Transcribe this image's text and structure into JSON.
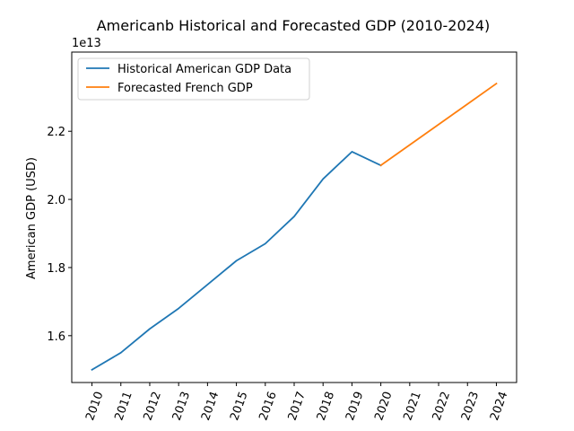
{
  "chart_data": {
    "type": "line",
    "title": "Americanb Historical and Forecasted GDP (2010-2024)",
    "xlabel": "",
    "ylabel": "American GDP (USD)",
    "y_offset_label": "1e13",
    "x_ticks": [
      "2010",
      "2011",
      "2012",
      "2013",
      "2014",
      "2015",
      "2016",
      "2017",
      "2018",
      "2019",
      "2020",
      "2021",
      "2022",
      "2023",
      "2024"
    ],
    "y_ticks": [
      {
        "value": 16000000000000.0,
        "label": "1.6"
      },
      {
        "value": 18000000000000.0,
        "label": "1.8"
      },
      {
        "value": 20000000000000.0,
        "label": "2.0"
      },
      {
        "value": 22000000000000.0,
        "label": "2.2"
      }
    ],
    "xlim": [
      2009.3,
      2024.7
    ],
    "ylim": [
      14625000000000.0,
      24325000000000.0
    ],
    "grid": false,
    "legend_position": "top-left",
    "series": [
      {
        "name": "Historical American GDP Data",
        "color": "#1f77b4",
        "x": [
          2010,
          2011,
          2012,
          2013,
          2014,
          2015,
          2016,
          2017,
          2018,
          2019,
          2020
        ],
        "y": [
          15000000000000.0,
          15500000000000.0,
          16200000000000.0,
          16800000000000.0,
          17500000000000.0,
          18200000000000.0,
          18700000000000.0,
          19500000000000.0,
          20600000000000.0,
          21400000000000.0,
          21000000000000.0
        ]
      },
      {
        "name": "Forecasted French GDP",
        "color": "#ff7f0e",
        "x": [
          2020,
          2021,
          2022,
          2023,
          2024
        ],
        "y": [
          21000000000000.0,
          21600000000000.0,
          22200000000000.0,
          22800000000000.0,
          23400000000000.0
        ]
      }
    ]
  }
}
